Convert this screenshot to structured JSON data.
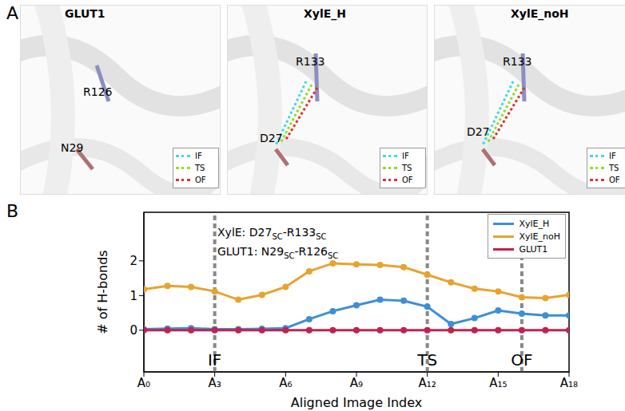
{
  "panel_a": {
    "label": "A",
    "panels": [
      {
        "title": "GLUT1",
        "residues": [
          "R126",
          "N29"
        ]
      },
      {
        "title": "XylE_H",
        "residues": [
          "R133",
          "D27"
        ]
      },
      {
        "title": "XylE_noH",
        "residues": [
          "R133",
          "D27"
        ]
      }
    ],
    "legend": [
      {
        "label": "IF",
        "color": "#40d8e8"
      },
      {
        "label": "TS",
        "color": "#8fe020"
      },
      {
        "label": "OF",
        "color": "#e03030"
      }
    ]
  },
  "panel_b": {
    "label": "B"
  },
  "chart_data": {
    "type": "line",
    "x_label": "Aligned Image Index",
    "y_label": "# of H-bonds",
    "x": [
      0,
      1,
      2,
      3,
      4,
      5,
      6,
      7,
      8,
      9,
      10,
      11,
      12,
      13,
      14,
      15,
      16,
      17,
      18
    ],
    "series": [
      {
        "name": "XylE_H",
        "color": "#3d8fd6",
        "marker": "o",
        "values": [
          0.03,
          0.05,
          0.06,
          0.03,
          0.03,
          0.04,
          0.06,
          0.32,
          0.55,
          0.72,
          0.88,
          0.85,
          0.68,
          0.18,
          0.35,
          0.57,
          0.48,
          0.43,
          0.43
        ]
      },
      {
        "name": "XylE_noH",
        "color": "#e8a32e",
        "marker": "o",
        "values": [
          1.18,
          1.28,
          1.25,
          1.12,
          0.88,
          1.02,
          1.25,
          1.7,
          1.93,
          1.9,
          1.88,
          1.82,
          1.6,
          1.38,
          1.2,
          1.12,
          0.95,
          0.93,
          1.02
        ]
      },
      {
        "name": "GLUT1",
        "color": "#c02350",
        "marker": "o",
        "values": [
          0,
          0,
          0,
          0,
          0,
          0,
          0,
          0,
          0,
          0,
          0,
          0,
          0,
          0,
          0,
          0,
          0,
          0,
          0
        ]
      }
    ],
    "xlim": [
      0,
      18
    ],
    "xticks": [
      {
        "value": 0,
        "label": "A₀"
      },
      {
        "value": 3,
        "label": "A₃"
      },
      {
        "value": 6,
        "label": "A₆"
      },
      {
        "value": 9,
        "label": "A₉"
      },
      {
        "value": 12,
        "label": "A₁₂"
      },
      {
        "value": 15,
        "label": "A₁₅"
      },
      {
        "value": 18,
        "label": "A₁₈"
      }
    ],
    "ylim": [
      -1.2,
      3.4
    ],
    "yticks": [
      0,
      1,
      2
    ],
    "grid": false,
    "legend": "upper right",
    "reference_lines": [
      {
        "x": 3,
        "label": "IF"
      },
      {
        "x": 12,
        "label": "TS"
      },
      {
        "x": 16,
        "label": "OF"
      }
    ],
    "annotations": [
      [
        "XylE: D27",
        "SC",
        "-R133",
        "SC"
      ],
      [
        "GLUT1: N29",
        "SC",
        "-R126",
        "SC"
      ]
    ]
  }
}
